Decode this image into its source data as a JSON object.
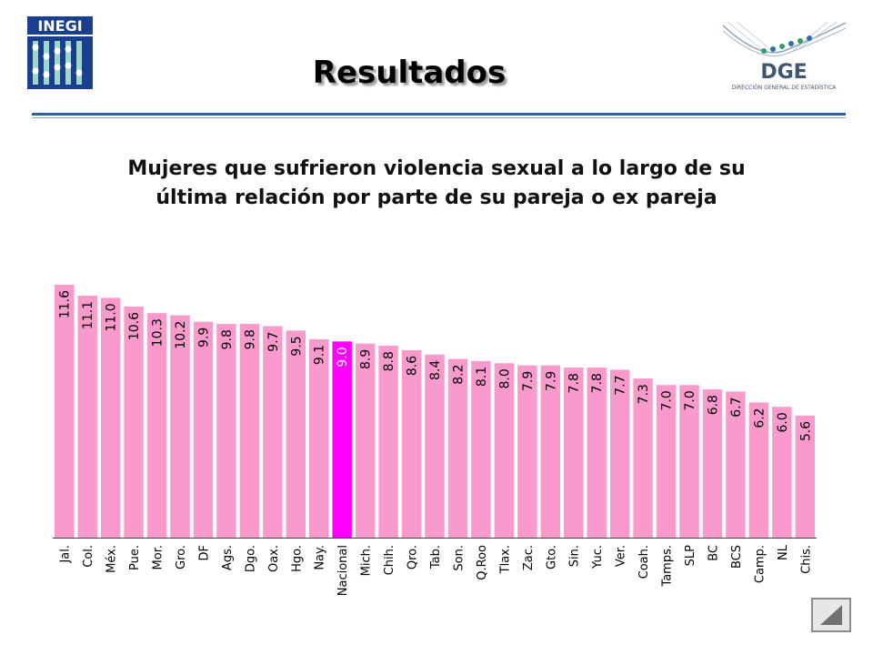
{
  "header": {
    "left_logo": "INEGI",
    "right_logo": "DGE",
    "right_logo_caption": "DIRECCIÓN GENERAL DE ESTADÍSTICA",
    "title": "Resultados"
  },
  "subtitle_line1": "Mujeres que sufrieron violencia sexual a lo largo de su",
  "subtitle_line2": "última relación por parte de su pareja o ex pareja",
  "colors": {
    "bar": "#F99ACC",
    "highlight": "#FF00FF",
    "axis": "#404040"
  },
  "chart_data": {
    "type": "bar",
    "title": "Mujeres que sufrieron violencia sexual a lo largo de su última relación por parte de su pareja o ex pareja",
    "xlabel": "",
    "ylabel": "",
    "ylim": [
      0,
      12.5
    ],
    "highlight": "Nacional",
    "categories": [
      "Jal.",
      "Col.",
      "Méx.",
      "Pue.",
      "Mor.",
      "Gro.",
      "DF",
      "Ags.",
      "Dgo.",
      "Oax.",
      "Hgo.",
      "Nay.",
      "Nacional",
      "Mich.",
      "Chih.",
      "Qro.",
      "Tab.",
      "Son.",
      "Q.Roo",
      "Tlax.",
      "Zac.",
      "Gto.",
      "Sin.",
      "Yuc.",
      "Ver.",
      "Coah.",
      "Tamps.",
      "SLP",
      "BC",
      "BCS",
      "Camp.",
      "NL",
      "Chis."
    ],
    "values": [
      11.6,
      11.1,
      11.0,
      10.6,
      10.3,
      10.2,
      9.9,
      9.8,
      9.8,
      9.7,
      9.5,
      9.1,
      9.0,
      8.9,
      8.8,
      8.6,
      8.4,
      8.2,
      8.1,
      8.0,
      7.9,
      7.9,
      7.8,
      7.8,
      7.7,
      7.3,
      7.0,
      7.0,
      6.8,
      6.7,
      6.2,
      6.0,
      5.6
    ],
    "labels": [
      "11.6",
      "11.1",
      "11.0",
      "10.6",
      "10.3",
      "10.2",
      "9.9",
      "9.8",
      "9.8",
      "9.7",
      "9.5",
      "9.1",
      "9.0",
      "8.9",
      "8.8",
      "8.6",
      "8.4",
      "8.2",
      "8.1",
      "8.0",
      "7.9",
      "7.9",
      "7.8",
      "7.8",
      "7.7",
      "7.3",
      "7.0",
      "7.0",
      "6.8",
      "6.7",
      "6.2",
      "6.0",
      "5.6"
    ]
  }
}
